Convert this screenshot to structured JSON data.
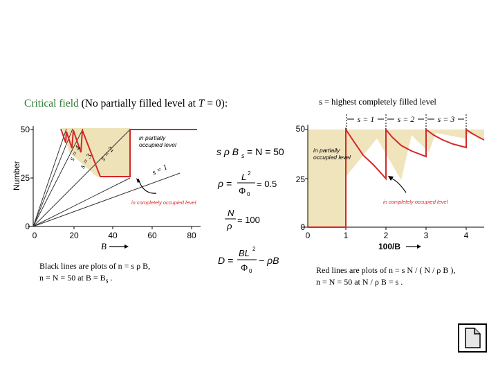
{
  "title": {
    "part1": "Critical field",
    "part2": " (No partially filled level at ",
    "var": "T",
    "part3": " = 0):"
  },
  "right_title": "s = highest completely filled level",
  "left_plot": {
    "y_label": "Number",
    "y_ticks": [
      "50",
      "25",
      "0"
    ],
    "x_ticks": [
      "0",
      "20",
      "40",
      "60",
      "80"
    ],
    "x_label": "B",
    "line_labels": [
      "s = 4",
      "s = 3",
      "s = 2",
      "s = 1"
    ],
    "annotation_top": [
      "in partially",
      "occupied level"
    ],
    "annotation_bottom": "in completely occupied level",
    "colors": {
      "red": "#d62728",
      "sand": "#e8d9a0",
      "line": "#333333"
    }
  },
  "equations": {
    "eq1_lhs": "s ρ B",
    "eq1_sub": "s",
    "eq1_rhs": "= N = 50",
    "eq2_lhs": "ρ =",
    "eq2_num": "L",
    "eq2_sup": "2",
    "eq2_den": "Φ",
    "eq2_den_sub": "0",
    "eq2_rhs": "= 0.5",
    "eq3_num": "N",
    "eq3_den": "ρ",
    "eq3_rhs": "= 100",
    "eq4_lhs": "D =",
    "eq4_num": "BL",
    "eq4_sup": "2",
    "eq4_den": "Φ",
    "eq4_den_sub": "0",
    "eq4_rhs": "− ρB"
  },
  "right_plot": {
    "y_ticks": [
      "50",
      "25",
      "0"
    ],
    "x_ticks": [
      "0",
      "1",
      "2",
      "3",
      "4"
    ],
    "x_label": "100/B",
    "s_labels": [
      "s = 1",
      "s = 2",
      "s = 3"
    ],
    "annotation_top": [
      "in partially",
      "occupied level"
    ],
    "annotation_bottom": "in completely occupied level"
  },
  "note_left": {
    "line1": "Black lines are plots of  n =  s ρ B,",
    "line2": "n = N = 50 at B = B",
    "line2_sub": "s",
    "line2_end": " ."
  },
  "note_right": {
    "line1": "Red lines are plots of  n =  s N / ( N / ρ B ),",
    "line2": "n = N = 50 at N / ρ B = s ."
  }
}
